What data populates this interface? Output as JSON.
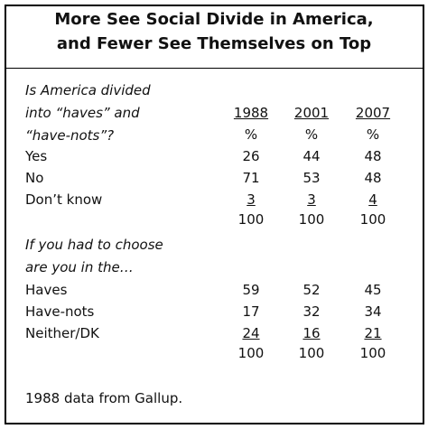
{
  "title": [
    "More See Social Divide in America,",
    "and Fewer See Themselves on Top"
  ],
  "columns": [
    "1988",
    "2001",
    "2007"
  ],
  "units": [
    "%",
    "%",
    "%"
  ],
  "sections": [
    {
      "question": [
        "Is America divided",
        "into “haves” and",
        "“have-nots”?"
      ],
      "rows": [
        {
          "label": "Yes",
          "values": [
            26,
            44,
            48
          ]
        },
        {
          "label": "No",
          "values": [
            71,
            53,
            48
          ]
        },
        {
          "label": "Don’t know",
          "values": [
            3,
            3,
            4
          ]
        }
      ],
      "totals": [
        100,
        100,
        100
      ]
    },
    {
      "question": [
        "If you had to choose",
        "are you in the…"
      ],
      "rows": [
        {
          "label": "Haves",
          "values": [
            59,
            52,
            45
          ]
        },
        {
          "label": "Have-nots",
          "values": [
            17,
            32,
            34
          ]
        },
        {
          "label": "Neither/DK",
          "values": [
            24,
            16,
            21
          ]
        }
      ],
      "totals": [
        100,
        100,
        100
      ]
    }
  ],
  "footnote": "1988 data from Gallup."
}
